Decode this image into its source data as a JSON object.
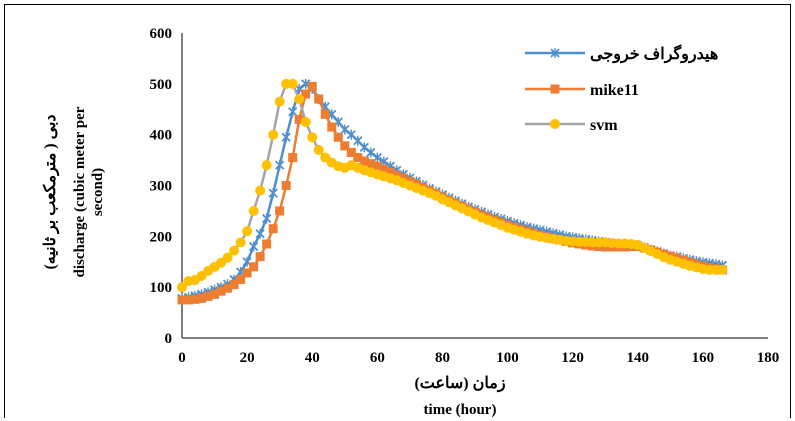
{
  "chart_data": {
    "type": "line",
    "xlabel_line1": "زمان (ساعت)",
    "xlabel_line2": "time (hour)",
    "ylabel_line1": "دبی ( مترمکعب بر ثانیه)",
    "ylabel_line2": "discharge (cubic meter per",
    "ylabel_line3": "second)",
    "xlim": [
      0,
      180
    ],
    "ylim": [
      0,
      600
    ],
    "x_ticks": [
      0,
      20,
      40,
      60,
      80,
      100,
      120,
      140,
      160,
      180
    ],
    "y_ticks": [
      0,
      100,
      200,
      300,
      400,
      500,
      600
    ],
    "grid": false,
    "legend_position": "top-right",
    "series": [
      {
        "name": "هیدروگراف خروجی",
        "color": "#4f8fcf",
        "marker": "x",
        "points": [
          [
            0,
            78
          ],
          [
            2,
            80
          ],
          [
            4,
            83
          ],
          [
            6,
            86
          ],
          [
            8,
            90
          ],
          [
            10,
            95
          ],
          [
            12,
            100
          ],
          [
            14,
            106
          ],
          [
            16,
            115
          ],
          [
            18,
            130
          ],
          [
            20,
            150
          ],
          [
            22,
            180
          ],
          [
            24,
            205
          ],
          [
            26,
            235
          ],
          [
            28,
            285
          ],
          [
            30,
            340
          ],
          [
            32,
            395
          ],
          [
            34,
            445
          ],
          [
            36,
            490
          ],
          [
            38,
            500
          ],
          [
            40,
            490
          ],
          [
            42,
            470
          ],
          [
            44,
            455
          ],
          [
            46,
            440
          ],
          [
            48,
            425
          ],
          [
            50,
            410
          ],
          [
            52,
            400
          ],
          [
            54,
            388
          ],
          [
            56,
            375
          ],
          [
            58,
            365
          ],
          [
            60,
            355
          ],
          [
            62,
            347
          ],
          [
            64,
            338
          ],
          [
            66,
            330
          ],
          [
            68,
            322
          ],
          [
            70,
            315
          ],
          [
            72,
            308
          ],
          [
            74,
            301
          ],
          [
            76,
            294
          ],
          [
            78,
            288
          ],
          [
            80,
            282
          ],
          [
            82,
            276
          ],
          [
            84,
            270
          ],
          [
            86,
            264
          ],
          [
            88,
            258
          ],
          [
            90,
            253
          ],
          [
            92,
            248
          ],
          [
            94,
            243
          ],
          [
            96,
            238
          ],
          [
            98,
            234
          ],
          [
            100,
            230
          ],
          [
            102,
            226
          ],
          [
            104,
            222
          ],
          [
            106,
            218
          ],
          [
            108,
            215
          ],
          [
            110,
            212
          ],
          [
            112,
            209
          ],
          [
            114,
            206
          ],
          [
            116,
            203
          ],
          [
            118,
            200
          ],
          [
            120,
            198
          ],
          [
            122,
            196
          ],
          [
            124,
            194
          ],
          [
            126,
            192
          ],
          [
            128,
            190
          ],
          [
            130,
            188
          ],
          [
            132,
            186
          ],
          [
            134,
            185
          ],
          [
            136,
            184
          ],
          [
            138,
            183
          ],
          [
            140,
            182
          ],
          [
            142,
            178
          ],
          [
            144,
            174
          ],
          [
            146,
            170
          ],
          [
            148,
            166
          ],
          [
            150,
            162
          ],
          [
            152,
            160
          ],
          [
            154,
            157
          ],
          [
            156,
            154
          ],
          [
            158,
            151
          ],
          [
            160,
            149
          ],
          [
            162,
            147
          ],
          [
            164,
            145
          ],
          [
            166,
            143
          ]
        ]
      },
      {
        "name": "mike11",
        "color": "#ed7d31",
        "marker": "square",
        "points": [
          [
            0,
            75
          ],
          [
            2,
            75
          ],
          [
            4,
            76
          ],
          [
            6,
            78
          ],
          [
            8,
            82
          ],
          [
            10,
            86
          ],
          [
            12,
            92
          ],
          [
            14,
            98
          ],
          [
            16,
            105
          ],
          [
            18,
            115
          ],
          [
            20,
            128
          ],
          [
            22,
            140
          ],
          [
            24,
            160
          ],
          [
            26,
            185
          ],
          [
            28,
            215
          ],
          [
            30,
            250
          ],
          [
            32,
            300
          ],
          [
            34,
            355
          ],
          [
            36,
            430
          ],
          [
            38,
            480
          ],
          [
            40,
            495
          ],
          [
            42,
            470
          ],
          [
            44,
            440
          ],
          [
            46,
            415
          ],
          [
            48,
            395
          ],
          [
            50,
            378
          ],
          [
            52,
            365
          ],
          [
            54,
            355
          ],
          [
            56,
            348
          ],
          [
            58,
            343
          ],
          [
            60,
            338
          ],
          [
            62,
            332
          ],
          [
            64,
            326
          ],
          [
            66,
            320
          ],
          [
            68,
            314
          ],
          [
            70,
            308
          ],
          [
            72,
            302
          ],
          [
            74,
            296
          ],
          [
            76,
            290
          ],
          [
            78,
            284
          ],
          [
            80,
            277
          ],
          [
            82,
            271
          ],
          [
            84,
            265
          ],
          [
            86,
            259
          ],
          [
            88,
            253
          ],
          [
            90,
            247
          ],
          [
            92,
            242
          ],
          [
            94,
            237
          ],
          [
            96,
            232
          ],
          [
            98,
            227
          ],
          [
            100,
            222
          ],
          [
            102,
            218
          ],
          [
            104,
            214
          ],
          [
            106,
            210
          ],
          [
            108,
            206
          ],
          [
            110,
            202
          ],
          [
            112,
            199
          ],
          [
            114,
            196
          ],
          [
            116,
            193
          ],
          [
            118,
            190
          ],
          [
            120,
            187
          ],
          [
            122,
            185
          ],
          [
            124,
            183
          ],
          [
            126,
            181
          ],
          [
            128,
            180
          ],
          [
            130,
            179
          ],
          [
            132,
            179
          ],
          [
            134,
            179
          ],
          [
            136,
            179
          ],
          [
            138,
            180
          ],
          [
            140,
            180
          ],
          [
            142,
            177
          ],
          [
            144,
            173
          ],
          [
            146,
            169
          ],
          [
            148,
            165
          ],
          [
            150,
            161
          ],
          [
            152,
            157
          ],
          [
            154,
            153
          ],
          [
            156,
            149
          ],
          [
            158,
            145
          ],
          [
            160,
            141
          ],
          [
            162,
            138
          ],
          [
            164,
            136
          ],
          [
            166,
            134
          ]
        ]
      },
      {
        "name": "svm",
        "color": "#ffc000",
        "marker": "circle",
        "points": [
          [
            0,
            100
          ],
          [
            2,
            112
          ],
          [
            4,
            114
          ],
          [
            6,
            122
          ],
          [
            8,
            132
          ],
          [
            10,
            140
          ],
          [
            12,
            148
          ],
          [
            14,
            158
          ],
          [
            16,
            172
          ],
          [
            18,
            188
          ],
          [
            20,
            210
          ],
          [
            22,
            250
          ],
          [
            24,
            290
          ],
          [
            26,
            340
          ],
          [
            28,
            400
          ],
          [
            30,
            465
          ],
          [
            32,
            500
          ],
          [
            34,
            500
          ],
          [
            36,
            470
          ],
          [
            38,
            425
          ],
          [
            40,
            395
          ],
          [
            42,
            370
          ],
          [
            44,
            355
          ],
          [
            46,
            345
          ],
          [
            48,
            338
          ],
          [
            50,
            335
          ],
          [
            52,
            340
          ],
          [
            54,
            335
          ],
          [
            56,
            330
          ],
          [
            58,
            326
          ],
          [
            60,
            322
          ],
          [
            62,
            318
          ],
          [
            64,
            314
          ],
          [
            66,
            310
          ],
          [
            68,
            305
          ],
          [
            70,
            300
          ],
          [
            72,
            295
          ],
          [
            74,
            290
          ],
          [
            76,
            285
          ],
          [
            78,
            280
          ],
          [
            80,
            273
          ],
          [
            82,
            267
          ],
          [
            84,
            261
          ],
          [
            86,
            255
          ],
          [
            88,
            249
          ],
          [
            90,
            243
          ],
          [
            92,
            237
          ],
          [
            94,
            232
          ],
          [
            96,
            227
          ],
          [
            98,
            222
          ],
          [
            100,
            217
          ],
          [
            102,
            213
          ],
          [
            104,
            209
          ],
          [
            106,
            205
          ],
          [
            108,
            202
          ],
          [
            110,
            199
          ],
          [
            112,
            197
          ],
          [
            114,
            195
          ],
          [
            116,
            193
          ],
          [
            118,
            191
          ],
          [
            120,
            190
          ],
          [
            122,
            189
          ],
          [
            124,
            189
          ],
          [
            126,
            188
          ],
          [
            128,
            188
          ],
          [
            130,
            188
          ],
          [
            132,
            187
          ],
          [
            134,
            186
          ],
          [
            136,
            186
          ],
          [
            138,
            185
          ],
          [
            140,
            183
          ],
          [
            142,
            177
          ],
          [
            144,
            171
          ],
          [
            146,
            165
          ],
          [
            148,
            159
          ],
          [
            150,
            154
          ],
          [
            152,
            150
          ],
          [
            154,
            146
          ],
          [
            156,
            142
          ],
          [
            158,
            139
          ],
          [
            160,
            136
          ],
          [
            162,
            134
          ],
          [
            164,
            134
          ],
          [
            166,
            134
          ]
        ]
      }
    ]
  }
}
